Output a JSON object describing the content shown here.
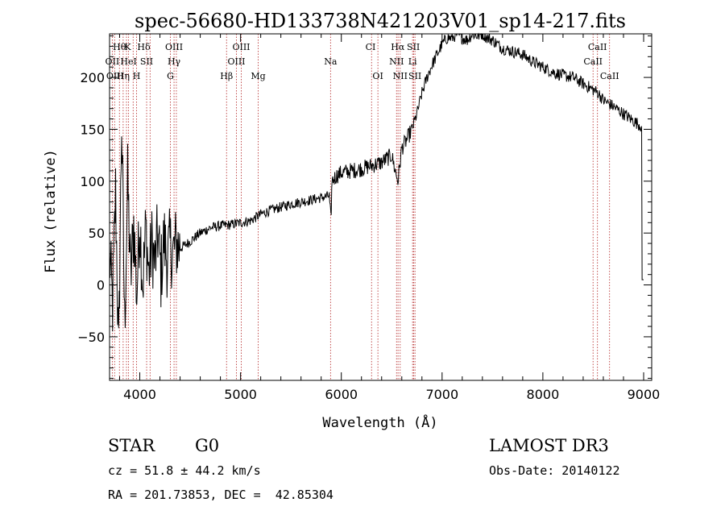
{
  "chart_data": {
    "type": "line",
    "title": "spec-56680-HD133738N421203V01_sp14-217.fits",
    "xlabel": "Wavelength (Å)",
    "ylabel": "Flux (relative)",
    "xlim": [
      3700,
      9080
    ],
    "ylim": [
      -92,
      242
    ],
    "x_ticks": [
      4000,
      5000,
      6000,
      7000,
      8000,
      9000
    ],
    "y_ticks": [
      -50,
      0,
      50,
      100,
      150,
      200
    ],
    "x_tick_labels": [
      "4000",
      "5000",
      "6000",
      "7000",
      "8000",
      "9000"
    ],
    "y_tick_labels": [
      "−50",
      "0",
      "50",
      "100",
      "150",
      "200"
    ],
    "series": [
      {
        "name": "flux",
        "x": [
          3700,
          3730,
          3760,
          3790,
          3820,
          3850,
          3880,
          3910,
          3940,
          3970,
          4000,
          4030,
          4060,
          4090,
          4120,
          4150,
          4180,
          4210,
          4240,
          4270,
          4300,
          4330,
          4360,
          4400,
          4500,
          4600,
          4700,
          4800,
          4900,
          5000,
          5100,
          5200,
          5300,
          5400,
          5500,
          5600,
          5700,
          5800,
          5880,
          5900,
          5905,
          5950,
          6000,
          6100,
          6200,
          6300,
          6400,
          6500,
          6530,
          6562,
          6600,
          6650,
          6700,
          6750,
          6800,
          6850,
          6900,
          6950,
          7000,
          7050,
          7100,
          7150,
          7200,
          7250,
          7300,
          7350,
          7400,
          7450,
          7500,
          7550,
          7600,
          7700,
          7800,
          7900,
          8000,
          8100,
          8200,
          8300,
          8400,
          8500,
          8550,
          8600,
          8700,
          8800,
          8900,
          8980,
          8985,
          9000
        ],
        "y": [
          30,
          -20,
          90,
          -70,
          160,
          -40,
          100,
          5,
          60,
          -10,
          65,
          0,
          55,
          10,
          40,
          20,
          50,
          10,
          45,
          25,
          38,
          30,
          40,
          35,
          42,
          50,
          55,
          57,
          58,
          60,
          62,
          68,
          72,
          75,
          78,
          80,
          82,
          84,
          86,
          60,
          100,
          105,
          108,
          110,
          112,
          115,
          118,
          125,
          112,
          100,
          132,
          140,
          150,
          165,
          185,
          200,
          212,
          222,
          232,
          238,
          238,
          242,
          238,
          236,
          242,
          240,
          242,
          238,
          236,
          232,
          228,
          225,
          222,
          215,
          210,
          205,
          202,
          200,
          194,
          188,
          185,
          178,
          172,
          165,
          158,
          153,
          5,
          5
        ]
      }
    ],
    "spectral_lines": [
      {
        "label": "Hθ",
        "x": 3798,
        "row": 0
      },
      {
        "label": "K",
        "x": 3880,
        "row": 0
      },
      {
        "label": "Hδ",
        "x": 4040,
        "row": 0
      },
      {
        "label": "OIII",
        "x": 4340,
        "row": 0
      },
      {
        "label": "OIII",
        "x": 5007,
        "row": 0
      },
      {
        "label": "CI",
        "x": 6290,
        "row": 0
      },
      {
        "label": "Hα",
        "x": 6560,
        "row": 0
      },
      {
        "label": "SII",
        "x": 6715,
        "row": 0
      },
      {
        "label": "CaII",
        "x": 8542,
        "row": 0
      },
      {
        "label": "OII",
        "x": 3727,
        "row": 1
      },
      {
        "label": "HeI",
        "x": 3889,
        "row": 1
      },
      {
        "label": "SII",
        "x": 4068,
        "row": 1
      },
      {
        "label": "Hγ",
        "x": 4340,
        "row": 1
      },
      {
        "label": "OIII",
        "x": 4959,
        "row": 1
      },
      {
        "label": "Na",
        "x": 5893,
        "row": 1
      },
      {
        "label": "NII",
        "x": 6548,
        "row": 1
      },
      {
        "label": "Li",
        "x": 6707,
        "row": 1
      },
      {
        "label": "CaII",
        "x": 8498,
        "row": 1
      },
      {
        "label": "OIII",
        "x": 3755,
        "row": 2
      },
      {
        "label": "Hη",
        "x": 3835,
        "row": 2
      },
      {
        "label": "H",
        "x": 3968,
        "row": 2
      },
      {
        "label": "G",
        "x": 4304,
        "row": 2
      },
      {
        "label": "Hβ",
        "x": 4861,
        "row": 2
      },
      {
        "label": "Mg",
        "x": 5175,
        "row": 2
      },
      {
        "label": "OI",
        "x": 6363,
        "row": 2
      },
      {
        "label": "NII",
        "x": 6584,
        "row": 2
      },
      {
        "label": "SII",
        "x": 6731,
        "row": 2
      },
      {
        "label": "CaII",
        "x": 8662,
        "row": 2
      }
    ],
    "line_positions": [
      3727,
      3750,
      3798,
      3835,
      3868,
      3889,
      3934,
      3968,
      4068,
      4102,
      4304,
      4340,
      4363,
      4861,
      4959,
      5007,
      5175,
      5893,
      6300,
      6363,
      6548,
      6563,
      6584,
      6707,
      6717,
      6731,
      8498,
      8542,
      8662
    ]
  },
  "info": {
    "object_class": "STAR",
    "subclass": "G0",
    "survey": "LAMOST DR3",
    "redshift": "cz = 51.8 ± 44.2 km/s",
    "obs_date": "Obs-Date: 20140122",
    "coords": "RA = 201.73853, DEC =  42.85304"
  },
  "colors": {
    "line_marker": "#b22222",
    "spectrum": "#000000",
    "axis": "#000000"
  }
}
